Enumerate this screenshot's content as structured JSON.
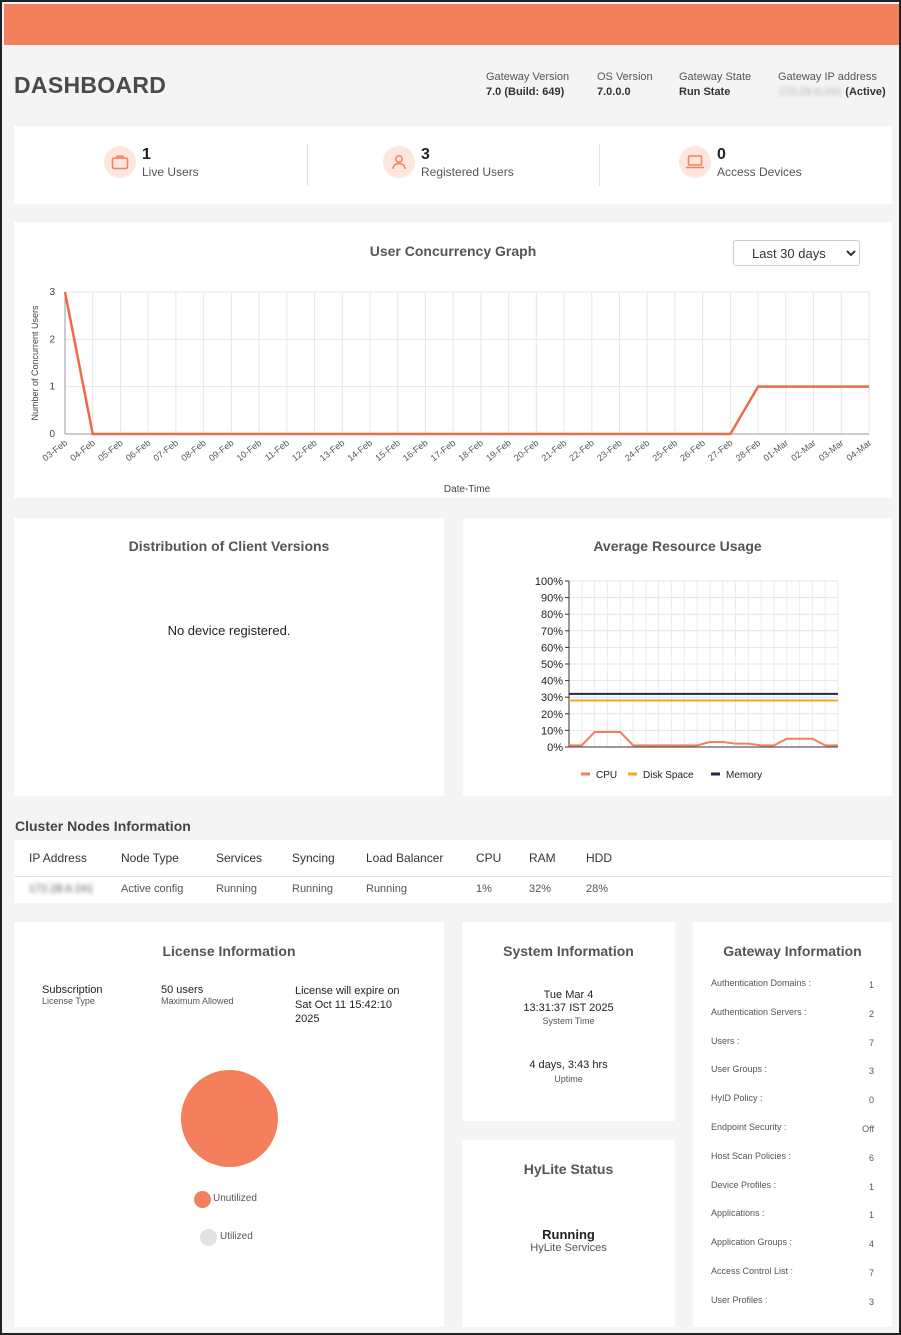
{
  "header": {
    "title": "DASHBOARD",
    "gateway_version_label": "Gateway Version",
    "gateway_version_value": "7.0 (Build: 649)",
    "os_version_label": "OS Version",
    "os_version_value": "7.0.0.0",
    "gateway_state_label": "Gateway State",
    "gateway_state_value": "Run State",
    "gateway_ip_label": "Gateway IP address",
    "gateway_ip_value": "172.28.6.241",
    "gateway_ip_status": "(Active)"
  },
  "stats": {
    "live_users_count": "1",
    "live_users_label": "Live Users",
    "registered_users_count": "3",
    "registered_users_label": "Registered Users",
    "access_devices_count": "0",
    "access_devices_label": "Access Devices"
  },
  "concurrency": {
    "title": "User Concurrency Graph",
    "range_selected": "Last 30 days"
  },
  "client_versions": {
    "title": "Distribution of Client Versions",
    "message": "No device registered."
  },
  "resource": {
    "title": "Average Resource Usage"
  },
  "cluster": {
    "title": "Cluster Nodes Information",
    "headers": [
      "IP Address",
      "Node Type",
      "Services",
      "Syncing",
      "Load Balancer",
      "CPU",
      "RAM",
      "HDD"
    ],
    "row": [
      "172.28.6.241",
      "Active config",
      "Running",
      "Running",
      "Running",
      "1%",
      "32%",
      "28%"
    ]
  },
  "license": {
    "title": "License Information",
    "subscription_value": "Subscription",
    "subscription_label": "License Type",
    "users_value": "50 users",
    "users_label": "Maximum Allowed",
    "expire_text": "License will expire on Sat Oct 11 15:42:10 2025",
    "legend_unutilized": "Unutilized",
    "legend_utilized": "Utilized",
    "unutilized_color": "#f47f5c",
    "utilized_color": "#e2e2e2"
  },
  "system": {
    "title": "System Information",
    "date_line1": "Tue Mar 4",
    "date_line2": "13:31:37 IST 2025",
    "time_label": "System Time",
    "uptime_value": "4 days, 3:43 hrs",
    "uptime_label": "Uptime"
  },
  "hylite": {
    "title": "HyLite Status",
    "status": "Running",
    "label": "HyLite Services"
  },
  "gateway_info": {
    "title": "Gateway Information",
    "items": [
      {
        "label": "Authentication Domains :",
        "value": "1"
      },
      {
        "label": "Authentication Servers :",
        "value": "2"
      },
      {
        "label": "Users :",
        "value": "7"
      },
      {
        "label": "User Groups :",
        "value": "3"
      },
      {
        "label": "HyID Policy :",
        "value": "0"
      },
      {
        "label": "Endpoint Security :",
        "value": "Off"
      },
      {
        "label": "Host Scan Policies :",
        "value": "6"
      },
      {
        "label": "Device Profiles :",
        "value": "1"
      },
      {
        "label": "Applications :",
        "value": "1"
      },
      {
        "label": "Application Groups :",
        "value": "4"
      },
      {
        "label": "Access Control List :",
        "value": "7"
      },
      {
        "label": "User Profiles :",
        "value": "3"
      }
    ]
  },
  "colors": {
    "accent": "#f47f5c",
    "cpu": "#f47f5c",
    "disk": "#f5a623",
    "memory": "#1f2a44"
  },
  "chart_data": [
    {
      "type": "line",
      "title": "User Concurrency Graph",
      "xlabel": "Date-Time",
      "ylabel": "Number of Concurrent Users",
      "ylim": [
        0,
        3
      ],
      "yticks": [
        0,
        1,
        2,
        3
      ],
      "grid": true,
      "categories": [
        "03-Feb",
        "04-Feb",
        "05-Feb",
        "06-Feb",
        "07-Feb",
        "08-Feb",
        "09-Feb",
        "10-Feb",
        "11-Feb",
        "12-Feb",
        "13-Feb",
        "14-Feb",
        "15-Feb",
        "16-Feb",
        "17-Feb",
        "18-Feb",
        "19-Feb",
        "20-Feb",
        "21-Feb",
        "22-Feb",
        "23-Feb",
        "24-Feb",
        "25-Feb",
        "26-Feb",
        "27-Feb",
        "28-Feb",
        "01-Mar",
        "02-Mar",
        "03-Mar",
        "04-Mar"
      ],
      "series": [
        {
          "values": [
            3,
            0,
            0,
            0,
            0,
            0,
            0,
            0,
            0,
            0,
            0,
            0,
            0,
            0,
            0,
            0,
            0,
            0,
            0,
            0,
            0,
            0,
            0,
            0,
            0,
            1,
            1,
            1,
            1,
            1
          ]
        }
      ]
    },
    {
      "type": "line",
      "title": "Average Resource Usage",
      "ylim": [
        0,
        100
      ],
      "yticks": [
        "0%",
        "10%",
        "20%",
        "30%",
        "40%",
        "50%",
        "60%",
        "70%",
        "80%",
        "90%",
        "100%"
      ],
      "grid": true,
      "legend_position": "bottom",
      "series": [
        {
          "name": "CPU",
          "values": [
            1,
            1,
            9,
            9,
            9,
            1,
            1,
            1,
            1,
            1,
            1,
            3,
            3,
            2,
            2,
            1,
            1,
            5,
            5,
            5,
            1,
            1
          ]
        },
        {
          "name": "Disk Space",
          "values": [
            28,
            28,
            28,
            28,
            28,
            28,
            28,
            28,
            28,
            28,
            28,
            28,
            28,
            28,
            28,
            28,
            28,
            28,
            28,
            28,
            28,
            28
          ]
        },
        {
          "name": "Memory",
          "values": [
            32,
            32,
            32,
            32,
            32,
            32,
            32,
            32,
            32,
            32,
            32,
            32,
            32,
            32,
            32,
            32,
            32,
            32,
            32,
            32,
            32,
            32
          ]
        }
      ]
    },
    {
      "type": "pie",
      "categories": [
        "Unutilized",
        "Utilized"
      ],
      "values": [
        100,
        0
      ]
    }
  ]
}
